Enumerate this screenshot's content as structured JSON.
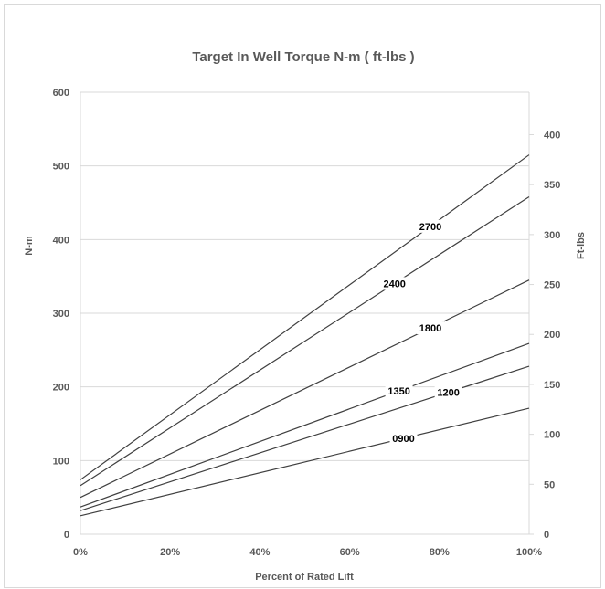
{
  "chart_data": {
    "type": "line",
    "title": "Target In Well Torque N-m ( ft-lbs )",
    "xlabel": "Percent of Rated Lift",
    "ylabel": "N-m",
    "y2label": "Ft-lbs",
    "xlim": [
      0,
      100
    ],
    "ylim": [
      0,
      600
    ],
    "y2lim": [
      0,
      442.5
    ],
    "x_ticks": [
      "0%",
      "20%",
      "40%",
      "60%",
      "80%",
      "100%"
    ],
    "y_ticks": [
      "0",
      "100",
      "200",
      "300",
      "400",
      "500",
      "600"
    ],
    "y2_ticks": [
      "0",
      "50",
      "100",
      "150",
      "200",
      "250",
      "300",
      "350",
      "400"
    ],
    "grid": true,
    "legend": "none",
    "line_color": "#404040",
    "series": [
      {
        "name": "2700",
        "x": [
          0,
          100
        ],
        "y": [
          74,
          515
        ]
      },
      {
        "name": "2400",
        "x": [
          0,
          100
        ],
        "y": [
          66,
          458
        ]
      },
      {
        "name": "1800",
        "x": [
          0,
          100
        ],
        "y": [
          50,
          345
        ]
      },
      {
        "name": "1350",
        "x": [
          0,
          100
        ],
        "y": [
          37,
          259
        ]
      },
      {
        "name": "1200",
        "x": [
          0,
          100
        ],
        "y": [
          32,
          228
        ]
      },
      {
        "name": "0900",
        "x": [
          0,
          100
        ],
        "y": [
          25,
          171
        ]
      }
    ],
    "label_x": [
      78,
      70,
      78,
      71,
      82,
      72
    ]
  }
}
